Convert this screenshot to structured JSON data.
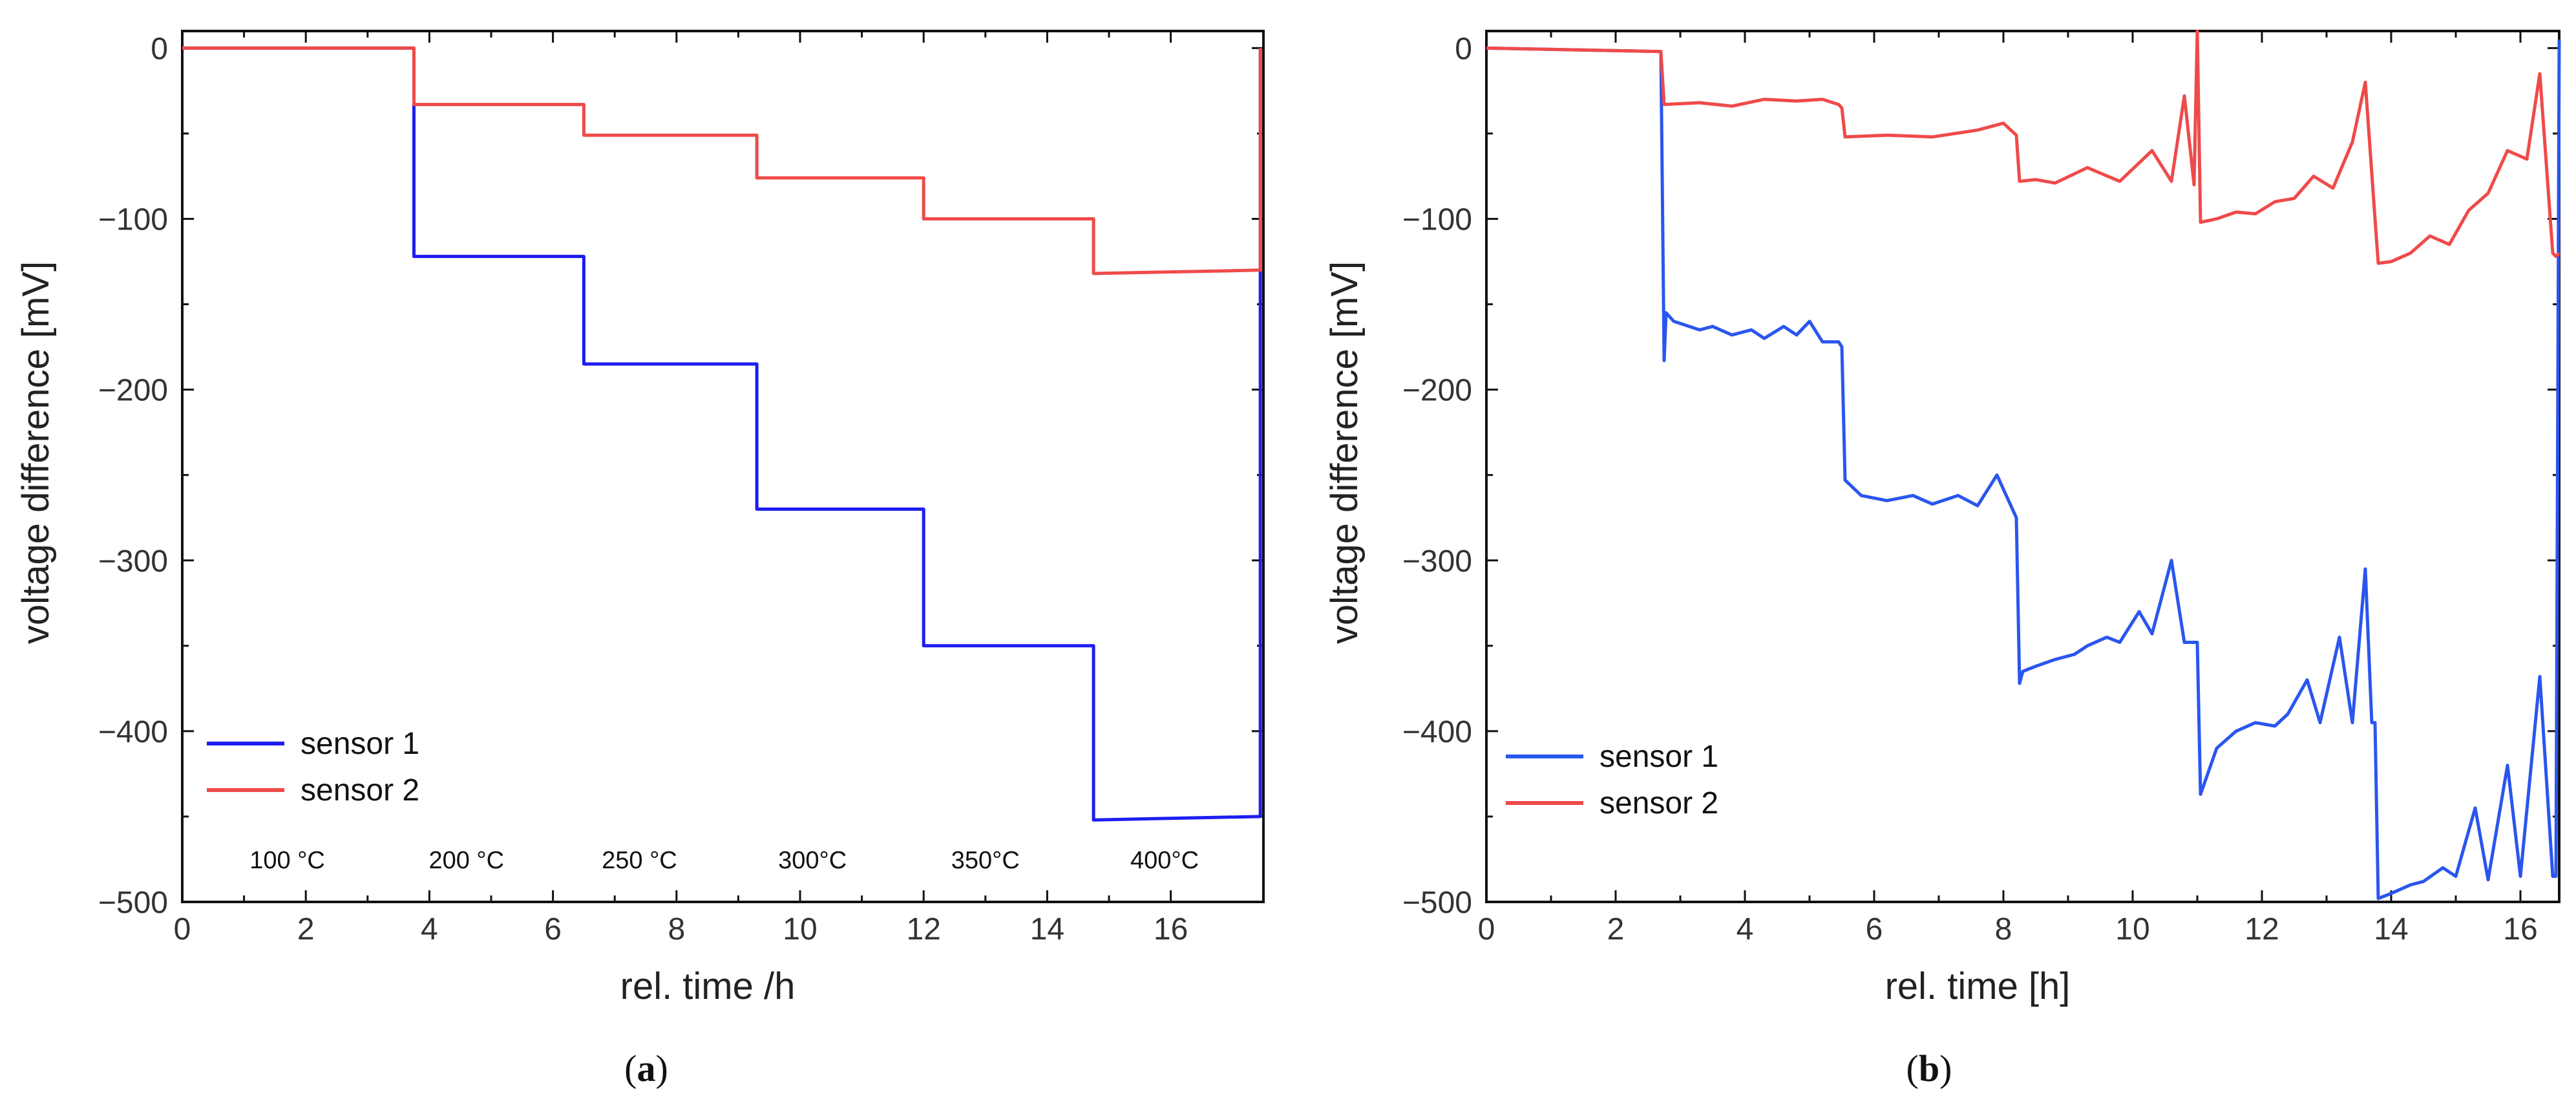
{
  "colors": {
    "sensor1_a": "#1d1df2",
    "sensor2_a": "#ef4a4a",
    "sensor1_b": "#2a56ee",
    "sensor2_b": "#ef4a4a"
  },
  "chart_data": [
    {
      "id": "a",
      "type": "line",
      "caption": "(a)",
      "xlabel": "rel. time /h",
      "ylabel": "voltage difference [mV]",
      "xlim": [
        0,
        17.5
      ],
      "ylim": [
        -500,
        10
      ],
      "xticks": [
        0,
        2,
        4,
        6,
        8,
        10,
        12,
        14,
        16
      ],
      "yticks": [
        0,
        -100,
        -200,
        -300,
        -400,
        -500
      ],
      "ytick_labels": [
        "0",
        "−100",
        "−200",
        "−300",
        "−400",
        "−500"
      ],
      "legend": [
        "sensor 1",
        "sensor 2"
      ],
      "annotations": [
        {
          "text": "100 °C",
          "x": 1.7,
          "y": -475
        },
        {
          "text": "200 °C",
          "x": 4.6,
          "y": -475
        },
        {
          "text": "250 °C",
          "x": 7.4,
          "y": -475
        },
        {
          "text": "300°C",
          "x": 10.2,
          "y": -475
        },
        {
          "text": "350°C",
          "x": 13.0,
          "y": -475
        },
        {
          "text": "400°C",
          "x": 15.9,
          "y": -475
        }
      ],
      "series": [
        {
          "name": "sensor 1",
          "x": [
            0,
            3.75,
            3.75,
            6.5,
            6.5,
            9.3,
            9.3,
            12.0,
            12.0,
            14.75,
            14.75,
            17.45,
            17.45
          ],
          "y": [
            0,
            0,
            -122,
            -122,
            -185,
            -185,
            -270,
            -270,
            -350,
            -350,
            -452,
            -450,
            0
          ],
          "wiggle_start": [
            false,
            false,
            false,
            false,
            false,
            false,
            true,
            true,
            true,
            true,
            true,
            true,
            false
          ]
        },
        {
          "name": "sensor 2",
          "x": [
            0,
            3.75,
            3.75,
            6.5,
            6.5,
            9.3,
            9.3,
            12.0,
            12.0,
            14.75,
            14.75,
            17.45,
            17.45
          ],
          "y": [
            0,
            0,
            -33,
            -33,
            -51,
            -51,
            -76,
            -76,
            -100,
            -100,
            -132,
            -130,
            0
          ]
        }
      ]
    },
    {
      "id": "b",
      "type": "line",
      "caption": "(b)",
      "xlabel": "rel. time [h]",
      "ylabel": "voltage difference [mV]",
      "xlim": [
        0,
        16.6
      ],
      "ylim": [
        -500,
        10
      ],
      "xticks": [
        0,
        2,
        4,
        6,
        8,
        10,
        12,
        14,
        16
      ],
      "yticks": [
        0,
        -100,
        -200,
        -300,
        -400,
        -500
      ],
      "ytick_labels": [
        "0",
        "−100",
        "−200",
        "−300",
        "−400",
        "−500"
      ],
      "legend": [
        "sensor 1",
        "sensor 2"
      ],
      "series": [
        {
          "name": "sensor 1",
          "x": [
            0,
            2.7,
            2.75,
            2.78,
            2.9,
            3.3,
            3.5,
            3.8,
            4.1,
            4.3,
            4.6,
            4.8,
            5.0,
            5.2,
            5.45,
            5.5,
            5.55,
            5.8,
            6.2,
            6.6,
            6.9,
            7.3,
            7.6,
            7.9,
            8.2,
            8.25,
            8.3,
            8.5,
            8.8,
            9.1,
            9.3,
            9.6,
            9.8,
            10.1,
            10.3,
            10.6,
            10.8,
            10.95,
            11.0,
            11.05,
            11.3,
            11.6,
            11.9,
            12.2,
            12.4,
            12.7,
            12.9,
            13.2,
            13.4,
            13.6,
            13.7,
            13.75,
            13.8,
            14.0,
            14.3,
            14.5,
            14.8,
            15.0,
            15.3,
            15.5,
            15.8,
            16.0,
            16.3,
            16.5,
            16.55,
            16.6
          ],
          "y": [
            0,
            -2,
            -183,
            -155,
            -160,
            -165,
            -163,
            -168,
            -165,
            -170,
            -163,
            -168,
            -160,
            -172,
            -172,
            -175,
            -253,
            -262,
            -265,
            -262,
            -267,
            -262,
            -268,
            -250,
            -275,
            -372,
            -365,
            -362,
            -358,
            -355,
            -350,
            -345,
            -348,
            -330,
            -343,
            -300,
            -348,
            -348,
            -348,
            -437,
            -410,
            -400,
            -395,
            -397,
            -390,
            -370,
            -395,
            -345,
            -395,
            -305,
            -395,
            -395,
            -498,
            -495,
            -490,
            -488,
            -480,
            -485,
            -445,
            -487,
            -420,
            -485,
            -368,
            -485,
            -485,
            5
          ]
        },
        {
          "name": "sensor 2",
          "x": [
            0,
            2.7,
            2.75,
            3.3,
            3.8,
            4.3,
            4.8,
            5.2,
            5.45,
            5.5,
            5.55,
            6.2,
            6.9,
            7.6,
            8.0,
            8.2,
            8.25,
            8.5,
            8.8,
            9.3,
            9.8,
            10.3,
            10.6,
            10.8,
            10.95,
            11.0,
            11.05,
            11.3,
            11.6,
            11.9,
            12.2,
            12.5,
            12.8,
            13.1,
            13.4,
            13.6,
            13.75,
            13.8,
            14.0,
            14.3,
            14.6,
            14.9,
            15.2,
            15.5,
            15.8,
            16.1,
            16.3,
            16.5,
            16.55,
            16.6
          ],
          "y": [
            0,
            -2,
            -33,
            -32,
            -34,
            -30,
            -31,
            -30,
            -33,
            -35,
            -52,
            -51,
            -52,
            -48,
            -44,
            -51,
            -78,
            -77,
            -79,
            -70,
            -78,
            -60,
            -78,
            -28,
            -80,
            10,
            -102,
            -100,
            -96,
            -97,
            -90,
            -88,
            -75,
            -82,
            -55,
            -20,
            -100,
            -126,
            -125,
            -120,
            -110,
            -115,
            -95,
            -85,
            -60,
            -65,
            -15,
            -120,
            -122,
            -120
          ]
        }
      ]
    }
  ]
}
